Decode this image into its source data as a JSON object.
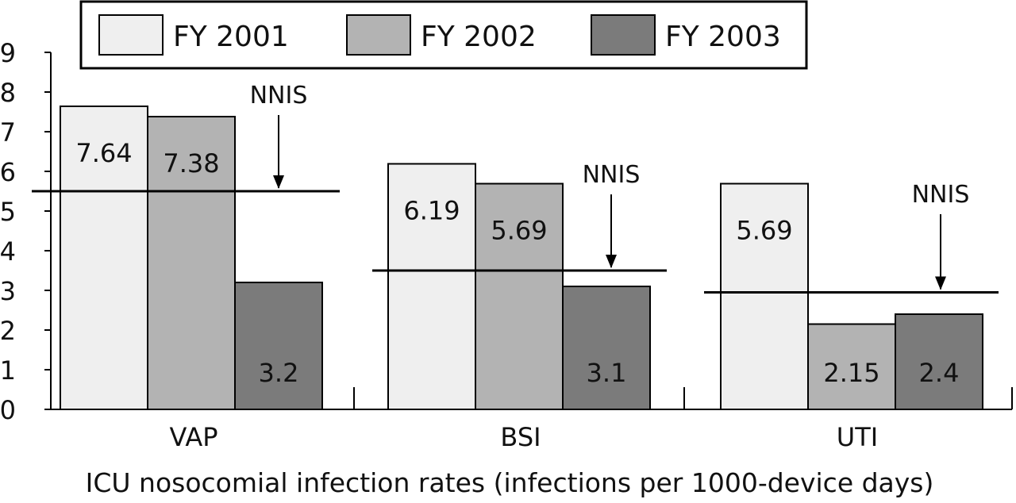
{
  "chart_data": {
    "type": "bar",
    "title": "",
    "xlabel": "ICU nosocomial infection rates (infections per 1000-device days)",
    "ylabel": "",
    "ylim": [
      0,
      9
    ],
    "yticks": [
      "0",
      "1",
      "2",
      "3",
      "4",
      "5",
      "6",
      "7",
      "8",
      "9"
    ],
    "categories": [
      "VAP",
      "BSI",
      "UTI"
    ],
    "series": [
      {
        "name": "FY 2001",
        "color": "#efefef",
        "values": [
          7.64,
          6.19,
          5.69
        ],
        "labels": [
          "7.64",
          "6.19",
          "5.69"
        ]
      },
      {
        "name": "FY 2002",
        "color": "#b3b3b3",
        "values": [
          7.38,
          5.69,
          2.15
        ],
        "labels": [
          "7.38",
          "5.69",
          "2.15"
        ]
      },
      {
        "name": "FY 2003",
        "color": "#7b7b7b",
        "values": [
          3.2,
          3.1,
          2.4
        ],
        "labels": [
          "3.2",
          "3.1",
          "2.4"
        ]
      }
    ],
    "reference_lines": {
      "label": "NNIS",
      "values": [
        5.5,
        3.5,
        2.95
      ]
    },
    "legend": {
      "placement": "top",
      "entries": [
        "FY 2001",
        "FY 2002",
        "FY 2003"
      ]
    },
    "grid": false
  }
}
